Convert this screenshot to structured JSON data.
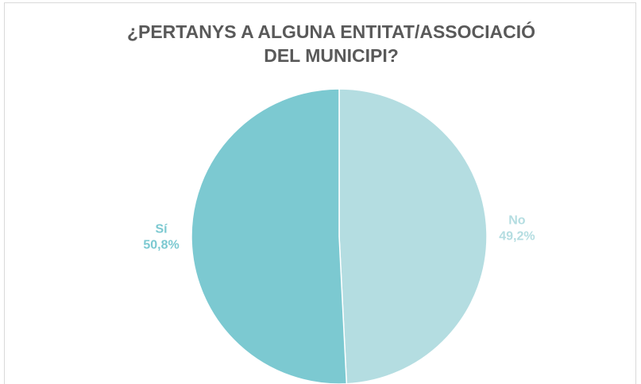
{
  "chart_data": {
    "type": "pie",
    "title": [
      "¿PERTANYS A ALGUNA ENTITAT/ASSOCIACIÓ",
      "DEL MUNICIPI?"
    ],
    "categories": [
      "No",
      "Sí"
    ],
    "values": [
      49.2,
      50.8
    ],
    "value_labels": [
      "49,2%",
      "50,8%"
    ],
    "colors": [
      "#b4dde1",
      "#7cc9d1"
    ]
  }
}
